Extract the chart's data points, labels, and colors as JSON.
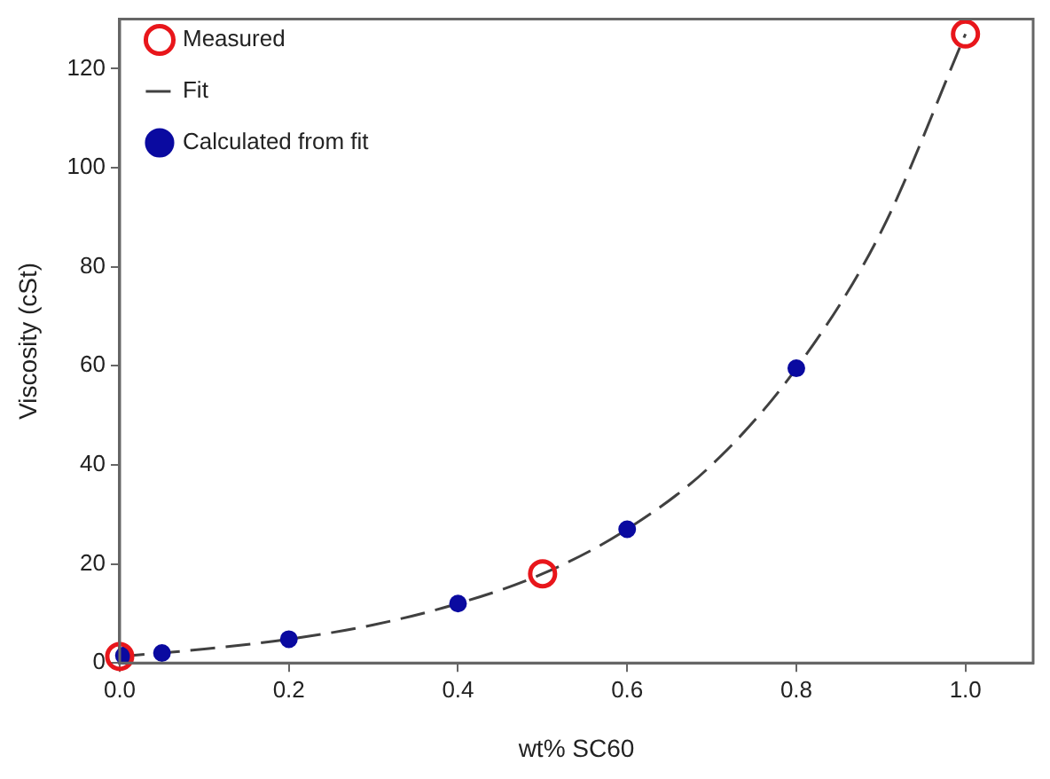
{
  "chart_data": {
    "type": "scatter",
    "xlabel": "wt% SC60",
    "ylabel": "Viscosity (cSt)",
    "xlim": [
      0,
      1.08
    ],
    "ylim": [
      0,
      130
    ],
    "xticks": [
      {
        "value": 0,
        "label": "0.0"
      },
      0.2,
      0.4,
      0.6,
      0.8,
      {
        "value": 1,
        "label": "1.0"
      }
    ],
    "yticks": [
      0,
      20,
      40,
      60,
      80,
      100,
      120
    ],
    "grid": false,
    "legend": "top left",
    "series": [
      {
        "name": "Measured",
        "marker": "circle",
        "color": "#e8161b",
        "x": [
          0,
          0.5,
          1.0
        ],
        "values": [
          1.3,
          18,
          127
        ]
      },
      {
        "name": "Fit",
        "type": "line",
        "marker": "none",
        "line_style": "dashed",
        "color": "#404040",
        "x": [
          0,
          0.1,
          0.2,
          0.3,
          0.4,
          0.5,
          0.6,
          0.7,
          0.8,
          0.9,
          1.0
        ],
        "values": [
          1.3,
          2.8,
          4.8,
          7.7,
          12,
          18,
          27,
          40,
          59.5,
          87,
          127
        ]
      },
      {
        "name": "Calculated from fit",
        "marker": "circle",
        "color": "#0a0aa0",
        "x": [
          0.005,
          0.05,
          0.2,
          0.4,
          0.6,
          0.8
        ],
        "values": [
          1.5,
          2,
          4.8,
          12,
          27,
          59.5
        ]
      }
    ]
  }
}
